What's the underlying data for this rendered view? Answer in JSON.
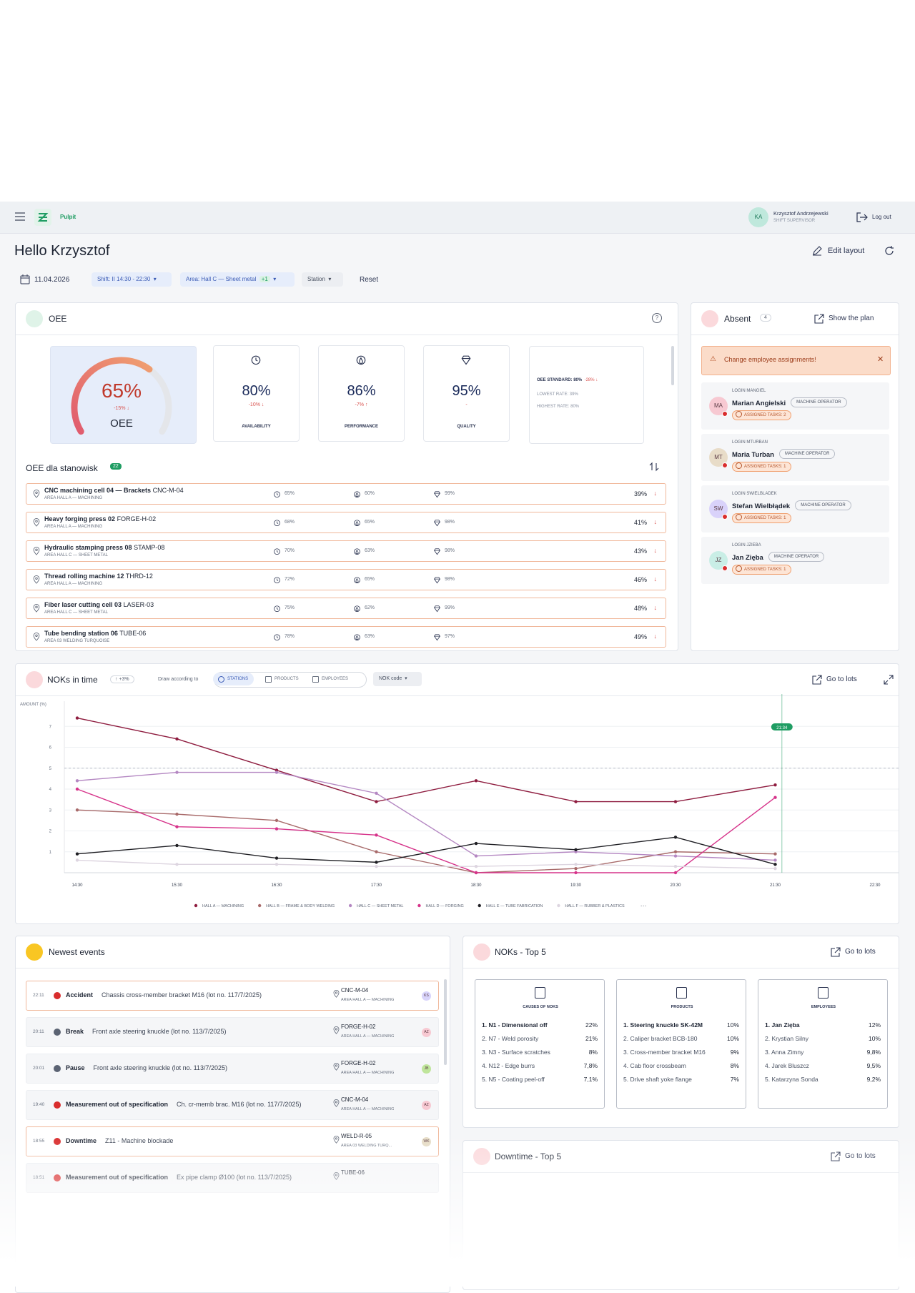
{
  "header": {
    "app": "Pulpit",
    "user_initials": "KA",
    "user_name": "Krzysztof Andrzejewski",
    "user_role": "SHIFT SUPERVISOR",
    "logout": "Log out"
  },
  "greeting": "Hello Krzysztof",
  "edit_layout": "Edit layout",
  "filters": {
    "date": "11.04.2026",
    "shift": "Shift: II 14:30 - 22:30",
    "area": "Area: Hall C — Sheet metal",
    "area_more": "+1",
    "station": "Station",
    "reset": "Reset"
  },
  "oee": {
    "title": "OEE",
    "gauge": {
      "value": 65,
      "lim": [
        0,
        100
      ],
      "label": "65%",
      "delta": "-15% ↓",
      "name": "OEE"
    },
    "kpis": [
      {
        "value": "80%",
        "delta": "-10% ↓",
        "label": "AVAILABILITY"
      },
      {
        "value": "86%",
        "delta": "-7% ↑",
        "label": "PERFORMANCE"
      },
      {
        "value": "95%",
        "delta": "-",
        "label": "QUALITY"
      }
    ],
    "standard": {
      "label": "OEE STANDARD: 80%",
      "delta": "-28% ↓",
      "lowest": "LOWEST RATE: 39%",
      "highest": "HIGHEST RATE: 80%"
    },
    "stations": {
      "title": "OEE dla stanowisk",
      "count": "22",
      "rows": [
        {
          "name": "CNC machining cell 04 — Brackets",
          "code": "CNC-M-04",
          "area": "AREA HALL A — MACHINING",
          "availability": "65%",
          "performance": "60%",
          "quality": "99%",
          "oee": "39%",
          "trend": "↓"
        },
        {
          "name": "Heavy forging press 02",
          "code": "FORGE-H-02",
          "area": "AREA HALL A — MACHINING",
          "availability": "68%",
          "performance": "65%",
          "quality": "98%",
          "oee": "41%",
          "trend": "↓"
        },
        {
          "name": "Hydraulic stamping press 08",
          "code": "STAMP-08",
          "area": "AREA HALL C — SHEET METAL",
          "availability": "70%",
          "performance": "63%",
          "quality": "98%",
          "oee": "43%",
          "trend": "↓"
        },
        {
          "name": "Thread rolling machine 12",
          "code": "THRD-12",
          "area": "AREA HALL A — MACHINING",
          "availability": "72%",
          "performance": "65%",
          "quality": "98%",
          "oee": "46%",
          "trend": "↓"
        },
        {
          "name": "Fiber laser cutting cell 03",
          "code": "LASER-03",
          "area": "AREA HALL C — SHEET METAL",
          "availability": "75%",
          "performance": "62%",
          "quality": "99%",
          "oee": "48%",
          "trend": "↓"
        },
        {
          "name": "Tube bending station 06",
          "code": "TUBE-06",
          "area": "AREA 03 WELDING TURQUOISE",
          "availability": "78%",
          "performance": "63%",
          "quality": "97%",
          "oee": "49%",
          "trend": "↓"
        }
      ]
    }
  },
  "absent": {
    "title": "Absent",
    "count": "4",
    "show_plan": "Show the plan",
    "alert": "Change employee assignments!",
    "people": [
      {
        "login": "LOGIN MANGIEL",
        "initials": "MA",
        "name": "Marian Angielski",
        "role": "MACHINE OPERATOR",
        "tasks": "ASSIGNED TASKS: 2",
        "color": "#f7c9d2"
      },
      {
        "login": "LOGIN MTURBAN",
        "initials": "MT",
        "name": "Maria Turban",
        "role": "MACHINE OPERATOR",
        "tasks": "ASSIGNED TASKS: 1",
        "color": "#e8dcc8"
      },
      {
        "login": "LOGIN SWIELBLADEK",
        "initials": "SW",
        "name": "Stefan Wielbłądek",
        "role": "MACHINE OPERATOR",
        "tasks": "ASSIGNED TASKS: 1",
        "color": "#d9d2fa"
      },
      {
        "login": "LOGIN JZIEBA",
        "initials": "JZ",
        "name": "Jan Zięba",
        "role": "MACHINE OPERATOR",
        "tasks": "ASSIGNED TASKS: 1",
        "color": "#c9eee6"
      }
    ]
  },
  "noks_in_time": {
    "title": "NOKs in time",
    "change": "↑ +3%",
    "draw_label": "Draw according to",
    "tabs": [
      "STATIONS",
      "PRODUCTS",
      "EMPLOYEES"
    ],
    "nok_code": "NOK code",
    "go_to_lots": "Go to lots",
    "chart": {
      "type": "line",
      "y_label": "AMOUNT (%)",
      "x": [
        "14:30",
        "15:30",
        "16:30",
        "17:30",
        "18:30",
        "19:30",
        "20:30",
        "21:30",
        "22:30"
      ],
      "ylim": [
        0,
        8
      ],
      "yticks": [
        1,
        2,
        3,
        4,
        5,
        6,
        7
      ],
      "grid": true,
      "threshold": 5,
      "now_marker": "21:34",
      "now_color": "#1f9d63",
      "series": [
        {
          "name": "HALL A — MACHINING",
          "color": "#8e1c3f",
          "values": [
            7.4,
            6.4,
            4.9,
            3.4,
            4.4,
            3.4,
            3.4,
            4.2,
            null
          ]
        },
        {
          "name": "HALL B — FRAME & BODY WELDING",
          "color": "#a86a6a",
          "values": [
            3.0,
            2.8,
            2.5,
            1.0,
            0.0,
            0.2,
            1.0,
            0.9,
            null
          ]
        },
        {
          "name": "HALL C — SHEET METAL",
          "color": "#b487c2",
          "values": [
            4.4,
            4.8,
            4.8,
            3.8,
            0.8,
            1.0,
            0.8,
            0.6,
            null
          ]
        },
        {
          "name": "HALL D — FORGING",
          "color": "#d6338a",
          "values": [
            4.0,
            2.2,
            2.1,
            1.8,
            0.0,
            0.0,
            0.0,
            3.6,
            null
          ]
        },
        {
          "name": "HALL E — TUBE FABRICATION",
          "color": "#1f1f24",
          "values": [
            0.9,
            1.3,
            0.7,
            0.5,
            1.4,
            1.1,
            1.7,
            0.4,
            null
          ]
        },
        {
          "name": "HALL F — RUBBER & PLASTICS",
          "color": "#ddd5e0",
          "values": [
            0.6,
            0.4,
            0.4,
            0.3,
            0.3,
            0.4,
            0.3,
            0.2,
            null
          ]
        }
      ],
      "legend_more": "···"
    }
  },
  "events": {
    "title": "Newest events",
    "rows": [
      {
        "time": "22:11",
        "type": "Accident",
        "desc": "Chassis cross-member bracket M16 (lot no. 117/7/2025)",
        "code": "CNC-M-04",
        "area": "AREA HALL A — MACHINING",
        "initials": "KS",
        "icon_color": "#d92d2d",
        "avatar_color": "#d8d4fb",
        "highlight": true
      },
      {
        "time": "20:11",
        "type": "Break",
        "desc": "Front axle steering knuckle (lot no. 113/7/2025)",
        "code": "FORGE-H-02",
        "area": "AREA HALL A — MACHINING",
        "initials": "AZ",
        "icon_color": "#5b6373",
        "avatar_color": "#f7c9d2",
        "highlight": false
      },
      {
        "time": "20:01",
        "type": "Pause",
        "desc": "Front axle steering knuckle (lot no. 113/7/2025)",
        "code": "FORGE-H-02",
        "area": "AREA HALL A — MACHINING",
        "initials": "JB",
        "icon_color": "#5b6373",
        "avatar_color": "#bfe59b",
        "highlight": false
      },
      {
        "time": "19:40",
        "type": "Measurement out of specification",
        "desc": "Ch. cr-memb brac. M16 (lot no. 117/7/2025)",
        "code": "CNC-M-04",
        "area": "AREA HALL A — MACHINING",
        "initials": "AZ",
        "icon_color": "#d92d2d",
        "avatar_color": "#f7c9d2",
        "highlight": false
      },
      {
        "time": "18:55",
        "type": "Downtime",
        "desc": "Z11 - Machine blockade",
        "code": "WELD-R-05",
        "area": "AREA 03 WELDING TURQ...",
        "initials": "WK",
        "icon_color": "#d92d2d",
        "avatar_color": "#e6dcc6",
        "highlight": true
      },
      {
        "time": "18:51",
        "type": "Measurement out of specification",
        "desc": "Ex pipe clamp Ø100 (lot no. 113/7/2025)",
        "code": "TUBE-06",
        "icon_color": "#d92d2d",
        "highlight": false
      }
    ]
  },
  "noks_top5": {
    "title": "NOKs - Top 5",
    "go_to_lots": "Go to lots",
    "columns": [
      {
        "label": "CAUSES OF NOKS",
        "items": [
          {
            "name": "1. N1 - Dimensional off",
            "pct": "22%"
          },
          {
            "name": "2. N7 - Weld porosity",
            "pct": "21%"
          },
          {
            "name": "3. N3 - Surface scratches",
            "pct": "8%"
          },
          {
            "name": "4. N12 - Edge burrs",
            "pct": "7,8%"
          },
          {
            "name": "5. N5 - Coating peel-off",
            "pct": "7,1%"
          }
        ]
      },
      {
        "label": "PRODUCTS",
        "items": [
          {
            "name": "1. Steering knuckle SK-42M",
            "pct": "10%"
          },
          {
            "name": "2. Caliper bracket BCB-180",
            "pct": "10%"
          },
          {
            "name": "3. Cross-member bracket M16",
            "pct": "9%"
          },
          {
            "name": "4. Cab floor crossbeam",
            "pct": "8%"
          },
          {
            "name": "5. Drive shaft yoke flange",
            "pct": "7%"
          }
        ]
      },
      {
        "label": "EMPLOYEES",
        "items": [
          {
            "name": "1. Jan Zięba",
            "pct": "12%"
          },
          {
            "name": "2. Krystian Silny",
            "pct": "10%"
          },
          {
            "name": "3. Anna Zimny",
            "pct": "9,8%"
          },
          {
            "name": "4. Jarek Bluszcz",
            "pct": "9,5%"
          },
          {
            "name": "5. Katarzyna Sonda",
            "pct": "9,2%"
          }
        ]
      }
    ]
  },
  "downtime_top5": {
    "title": "Downtime - Top 5",
    "go_to_lots": "Go to lots"
  }
}
